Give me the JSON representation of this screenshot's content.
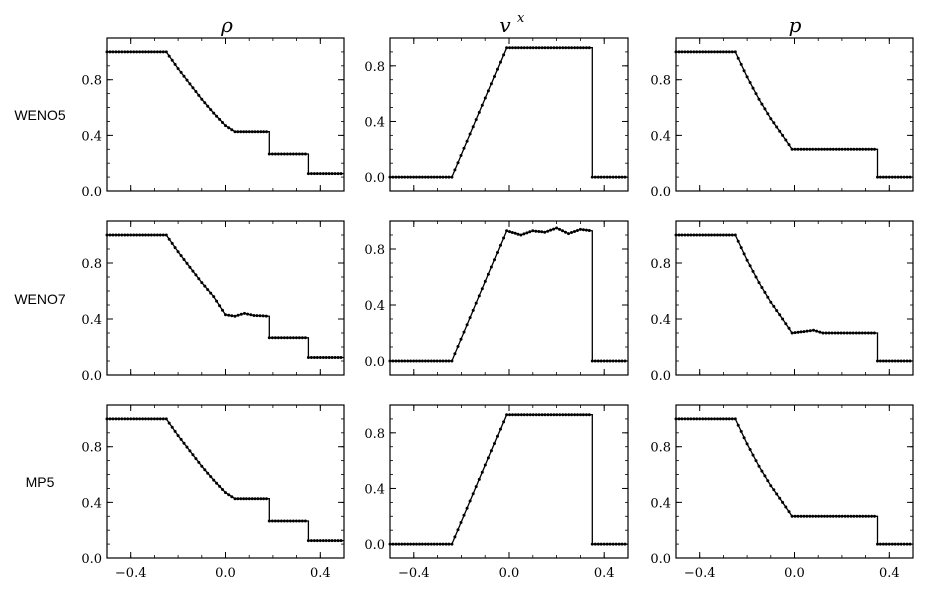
{
  "figure": {
    "column_titles": [
      {
        "base": "ρ",
        "sup": ""
      },
      {
        "base": "v",
        "sup": "x"
      },
      {
        "base": "p",
        "sup": ""
      }
    ],
    "row_labels": [
      "WENO5",
      "WENO7",
      "MP5"
    ]
  },
  "chart_data": [
    {
      "type": "line",
      "row": "WENO5",
      "column": "ρ",
      "xlim": [
        -0.5,
        0.5
      ],
      "ylim": [
        0.0,
        1.1
      ],
      "xticks": [
        -0.4,
        0.0,
        0.4
      ],
      "xtick_labels": [
        "−0.4",
        "0.0",
        "0.4"
      ],
      "yticks": [
        0.0,
        0.4,
        0.8
      ],
      "ytick_labels": [
        "0.0",
        "0.4",
        "0.8"
      ],
      "series": [
        {
          "x": [
            -0.5,
            -0.25,
            -0.2,
            -0.15,
            -0.1,
            -0.05,
            0.0,
            0.04,
            0.185,
            0.185,
            0.35,
            0.35,
            0.5
          ],
          "y": [
            1.0,
            1.0,
            0.88,
            0.77,
            0.66,
            0.56,
            0.47,
            0.426,
            0.426,
            0.266,
            0.266,
            0.125,
            0.125
          ]
        }
      ]
    },
    {
      "type": "line",
      "row": "WENO5",
      "column": "v^x",
      "xlim": [
        -0.5,
        0.5
      ],
      "ylim": [
        -0.1,
        1.0
      ],
      "xticks": [
        -0.4,
        0.0,
        0.4
      ],
      "xtick_labels": [
        "−0.4",
        "0.0",
        "0.4"
      ],
      "yticks": [
        0.0,
        0.4,
        0.8
      ],
      "ytick_labels": [
        "0.0",
        "0.4",
        "0.8"
      ],
      "series": [
        {
          "x": [
            -0.5,
            -0.24,
            -0.01,
            0.35,
            0.35,
            0.5
          ],
          "y": [
            0.0,
            0.0,
            0.93,
            0.93,
            0.0,
            0.0
          ]
        }
      ]
    },
    {
      "type": "line",
      "row": "WENO5",
      "column": "p",
      "xlim": [
        -0.5,
        0.5
      ],
      "ylim": [
        0.0,
        1.1
      ],
      "xticks": [
        -0.4,
        0.0,
        0.4
      ],
      "xtick_labels": [
        "−0.4",
        "0.0",
        "0.4"
      ],
      "yticks": [
        0.0,
        0.4,
        0.8
      ],
      "ytick_labels": [
        "0.0",
        "0.4",
        "0.8"
      ],
      "series": [
        {
          "x": [
            -0.5,
            -0.25,
            -0.2,
            -0.15,
            -0.1,
            -0.05,
            -0.01,
            0.35,
            0.35,
            0.5
          ],
          "y": [
            1.0,
            1.0,
            0.82,
            0.66,
            0.52,
            0.4,
            0.3,
            0.3,
            0.1,
            0.1
          ]
        }
      ]
    },
    {
      "type": "line",
      "row": "WENO7",
      "column": "ρ",
      "xlim": [
        -0.5,
        0.5
      ],
      "ylim": [
        0.0,
        1.1
      ],
      "xticks": [
        -0.4,
        0.0,
        0.4
      ],
      "xtick_labels": [
        "−0.4",
        "0.0",
        "0.4"
      ],
      "yticks": [
        0.0,
        0.4,
        0.8
      ],
      "ytick_labels": [
        "0.0",
        "0.4",
        "0.8"
      ],
      "series": [
        {
          "x": [
            -0.5,
            -0.25,
            -0.2,
            -0.15,
            -0.1,
            -0.05,
            0.0,
            0.04,
            0.08,
            0.12,
            0.185,
            0.185,
            0.35,
            0.35,
            0.5
          ],
          "y": [
            1.0,
            1.0,
            0.88,
            0.77,
            0.66,
            0.56,
            0.43,
            0.42,
            0.44,
            0.425,
            0.42,
            0.266,
            0.266,
            0.125,
            0.125
          ]
        }
      ]
    },
    {
      "type": "line",
      "row": "WENO7",
      "column": "v^x",
      "xlim": [
        -0.5,
        0.5
      ],
      "ylim": [
        -0.1,
        1.0
      ],
      "xticks": [
        -0.4,
        0.0,
        0.4
      ],
      "xtick_labels": [
        "−0.4",
        "0.0",
        "0.4"
      ],
      "yticks": [
        0.0,
        0.4,
        0.8
      ],
      "ytick_labels": [
        "0.0",
        "0.4",
        "0.8"
      ],
      "series": [
        {
          "x": [
            -0.5,
            -0.24,
            -0.01,
            0.05,
            0.1,
            0.15,
            0.2,
            0.25,
            0.3,
            0.35,
            0.35,
            0.5
          ],
          "y": [
            0.0,
            0.0,
            0.93,
            0.9,
            0.93,
            0.92,
            0.95,
            0.91,
            0.94,
            0.93,
            0.0,
            0.0
          ]
        }
      ]
    },
    {
      "type": "line",
      "row": "WENO7",
      "column": "p",
      "xlim": [
        -0.5,
        0.5
      ],
      "ylim": [
        0.0,
        1.1
      ],
      "xticks": [
        -0.4,
        0.0,
        0.4
      ],
      "xtick_labels": [
        "−0.4",
        "0.0",
        "0.4"
      ],
      "yticks": [
        0.0,
        0.4,
        0.8
      ],
      "ytick_labels": [
        "0.0",
        "0.4",
        "0.8"
      ],
      "series": [
        {
          "x": [
            -0.5,
            -0.25,
            -0.2,
            -0.15,
            -0.1,
            -0.05,
            -0.01,
            0.04,
            0.08,
            0.12,
            0.35,
            0.35,
            0.5
          ],
          "y": [
            1.0,
            1.0,
            0.82,
            0.66,
            0.52,
            0.4,
            0.3,
            0.31,
            0.32,
            0.3,
            0.3,
            0.1,
            0.1
          ]
        }
      ]
    },
    {
      "type": "line",
      "row": "MP5",
      "column": "ρ",
      "xlim": [
        -0.5,
        0.5
      ],
      "ylim": [
        0.0,
        1.1
      ],
      "xticks": [
        -0.4,
        0.0,
        0.4
      ],
      "xtick_labels": [
        "−0.4",
        "0.0",
        "0.4"
      ],
      "yticks": [
        0.0,
        0.4,
        0.8
      ],
      "ytick_labels": [
        "0.0",
        "0.4",
        "0.8"
      ],
      "series": [
        {
          "x": [
            -0.5,
            -0.25,
            -0.2,
            -0.15,
            -0.1,
            -0.05,
            0.0,
            0.04,
            0.185,
            0.185,
            0.35,
            0.35,
            0.5
          ],
          "y": [
            1.0,
            1.0,
            0.88,
            0.77,
            0.66,
            0.56,
            0.47,
            0.426,
            0.426,
            0.266,
            0.266,
            0.125,
            0.125
          ]
        }
      ]
    },
    {
      "type": "line",
      "row": "MP5",
      "column": "v^x",
      "xlim": [
        -0.5,
        0.5
      ],
      "ylim": [
        -0.1,
        1.0
      ],
      "xticks": [
        -0.4,
        0.0,
        0.4
      ],
      "xtick_labels": [
        "−0.4",
        "0.0",
        "0.4"
      ],
      "yticks": [
        0.0,
        0.4,
        0.8
      ],
      "ytick_labels": [
        "0.0",
        "0.4",
        "0.8"
      ],
      "series": [
        {
          "x": [
            -0.5,
            -0.24,
            -0.01,
            0.35,
            0.35,
            0.5
          ],
          "y": [
            0.0,
            0.0,
            0.93,
            0.93,
            0.0,
            0.0
          ]
        }
      ]
    },
    {
      "type": "line",
      "row": "MP5",
      "column": "p",
      "xlim": [
        -0.5,
        0.5
      ],
      "ylim": [
        0.0,
        1.1
      ],
      "xticks": [
        -0.4,
        0.0,
        0.4
      ],
      "xtick_labels": [
        "−0.4",
        "0.0",
        "0.4"
      ],
      "yticks": [
        0.0,
        0.4,
        0.8
      ],
      "ytick_labels": [
        "0.0",
        "0.4",
        "0.8"
      ],
      "series": [
        {
          "x": [
            -0.5,
            -0.25,
            -0.2,
            -0.15,
            -0.1,
            -0.05,
            -0.01,
            0.35,
            0.35,
            0.5
          ],
          "y": [
            1.0,
            1.0,
            0.82,
            0.66,
            0.52,
            0.4,
            0.3,
            0.3,
            0.1,
            0.1
          ]
        }
      ]
    }
  ]
}
